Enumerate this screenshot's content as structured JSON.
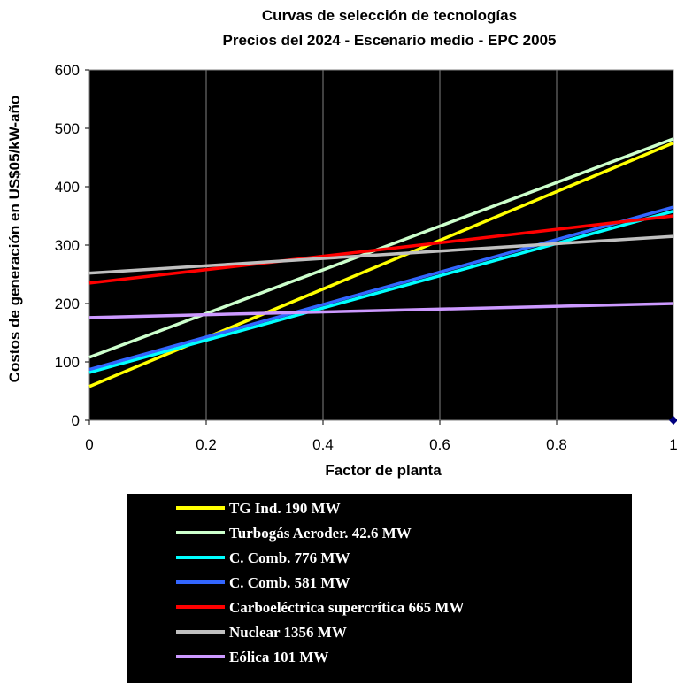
{
  "chart_data": {
    "type": "line",
    "title": [
      "Curvas de selección de tecnologías",
      "Precios del 2024 - Escenario medio - EPC 2005"
    ],
    "xlabel": "Factor de planta",
    "ylabel": "Costos de generación en US$05/kW-año",
    "xlim": [
      0,
      1
    ],
    "ylim": [
      0,
      600
    ],
    "x_ticks": [
      "0",
      "0.2",
      "0.4",
      "0.6",
      "0.8",
      "1"
    ],
    "y_ticks": [
      "0",
      "100",
      "200",
      "300",
      "400",
      "500",
      "600"
    ],
    "grid": "vertical",
    "legend_position": "bottom",
    "background_color": "#000000",
    "series": [
      {
        "name": "TG Ind.  190 MW",
        "color": "#ffff00",
        "x": [
          0,
          1
        ],
        "y": [
          58,
          475
        ]
      },
      {
        "name": "Turbogás Aeroder.  42.6 MW",
        "color": "#ccffcc",
        "x": [
          0,
          1
        ],
        "y": [
          108,
          482
        ]
      },
      {
        "name": "C. Comb. 776 MW",
        "color": "#00ffff",
        "x": [
          0,
          1
        ],
        "y": [
          82,
          358
        ]
      },
      {
        "name": "C. Comb.  581 MW",
        "color": "#3366ff",
        "x": [
          0,
          1
        ],
        "y": [
          87,
          365
        ]
      },
      {
        "name": "Carboeléctrica supercrítica 665 MW",
        "color": "#ff0000",
        "x": [
          0,
          1
        ],
        "y": [
          235,
          350
        ]
      },
      {
        "name": "Nuclear 1356 MW",
        "color": "#c0c0c0",
        "x": [
          0,
          1
        ],
        "y": [
          252,
          315
        ]
      },
      {
        "name": "Eólica 101 MW",
        "color": "#cc99ff",
        "x": [
          0,
          1
        ],
        "y": [
          176,
          200
        ]
      }
    ],
    "marker": {
      "x": 1,
      "y": 0,
      "color": "#000080"
    }
  }
}
